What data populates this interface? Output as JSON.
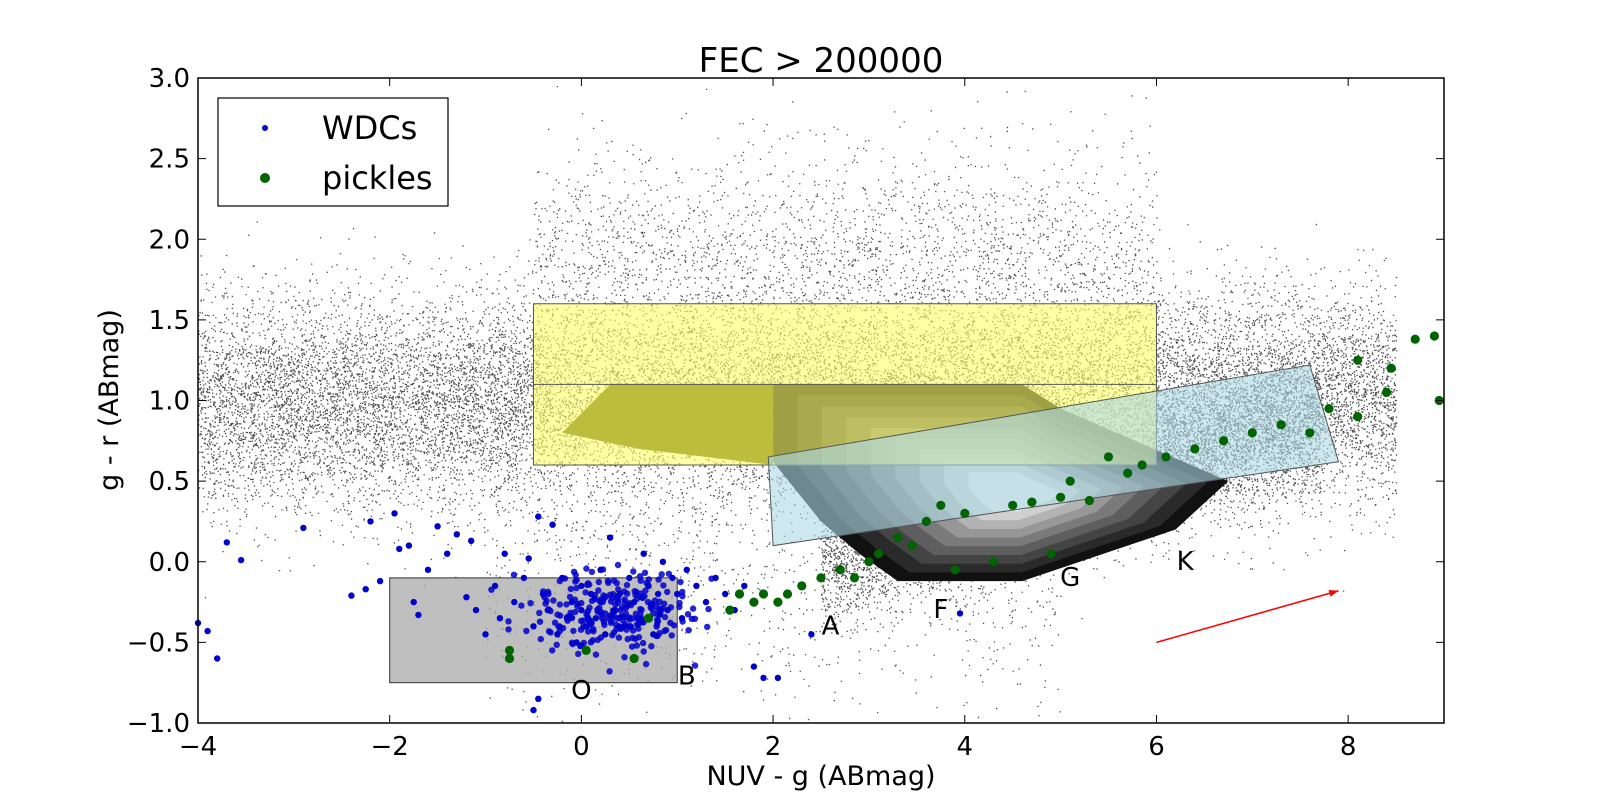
{
  "chart_data": {
    "type": "scatter",
    "title": "FEC > 200000",
    "xlabel": "NUV - g (ABmag)",
    "ylabel": "g - r (ABmag)",
    "xlim": [
      -4,
      9
    ],
    "ylim": [
      -1.0,
      3.0
    ],
    "xticks": [
      -4,
      -2,
      0,
      2,
      4,
      6,
      8
    ],
    "xtick_labels": [
      "−4",
      "−2",
      "0",
      "2",
      "4",
      "6",
      "8"
    ],
    "yticks": [
      -1.0,
      -0.5,
      0.0,
      0.5,
      1.0,
      1.5,
      2.0,
      2.5,
      3.0
    ],
    "ytick_labels": [
      "−1.0",
      "−0.5",
      "0.0",
      "0.5",
      "1.0",
      "1.5",
      "2.0",
      "2.5",
      "3.0"
    ],
    "grid": false,
    "legend": {
      "position": "top-left",
      "entries": [
        {
          "label": "WDCs",
          "color": "#0000cc",
          "marker": "small-dot"
        },
        {
          "label": "pickles",
          "color": "#006400",
          "marker": "dot"
        }
      ]
    },
    "colors": {
      "wdc": "#0000cc",
      "pickles": "#006400",
      "field_stars": "#000000",
      "yellow_box": "#ffff66",
      "blue_box": "#add8e6",
      "grey_box": "#a9a9a9",
      "arrow": "#ff0000"
    },
    "regions": [
      {
        "name": "yellow-region",
        "x_range": [
          -0.5,
          6.0
        ],
        "y_range": [
          0.6,
          1.6
        ],
        "inner_line_y": 1.1
      },
      {
        "name": "blue-region",
        "corners": [
          [
            1.95,
            0.65
          ],
          [
            7.6,
            1.22
          ],
          [
            7.9,
            0.62
          ],
          [
            2.0,
            0.1
          ]
        ]
      },
      {
        "name": "grey-region",
        "x_range": [
          -2.0,
          1.0
        ],
        "y_range": [
          -0.75,
          -0.1
        ]
      }
    ],
    "annotations": [
      {
        "text": "O",
        "x": 0.0,
        "y": -0.85
      },
      {
        "text": "B",
        "x": 1.1,
        "y": -0.76
      },
      {
        "text": "A",
        "x": 2.6,
        "y": -0.45
      },
      {
        "text": "F",
        "x": 3.75,
        "y": -0.35
      },
      {
        "text": "G",
        "x": 5.1,
        "y": -0.15
      },
      {
        "text": "K",
        "x": 6.3,
        "y": -0.05
      }
    ],
    "reddening_arrow": {
      "from": [
        6.0,
        -0.5
      ],
      "to": [
        7.9,
        -0.18
      ]
    },
    "series": [
      {
        "name": "WDCs",
        "points": [
          [
            -4.0,
            -0.38
          ],
          [
            -3.9,
            -0.43
          ],
          [
            -3.8,
            -0.6
          ],
          [
            -3.7,
            0.12
          ],
          [
            -3.55,
            0.01
          ],
          [
            -2.9,
            0.21
          ],
          [
            -2.4,
            -0.21
          ],
          [
            -2.25,
            -0.17
          ],
          [
            -2.2,
            0.25
          ],
          [
            -2.1,
            -0.12
          ],
          [
            -1.95,
            0.3
          ],
          [
            -1.9,
            0.08
          ],
          [
            -1.8,
            0.1
          ],
          [
            -1.75,
            -0.25
          ],
          [
            -1.7,
            -0.33
          ],
          [
            -1.6,
            -0.05
          ],
          [
            -1.5,
            0.22
          ],
          [
            -1.4,
            0.05
          ],
          [
            -1.3,
            0.17
          ],
          [
            -1.2,
            -0.22
          ],
          [
            -1.15,
            0.13
          ],
          [
            -1.1,
            -0.3
          ],
          [
            -1.0,
            -0.45
          ],
          [
            -0.9,
            -0.15
          ],
          [
            -0.85,
            -0.35
          ],
          [
            -0.8,
            0.05
          ],
          [
            -0.75,
            -0.55
          ],
          [
            -0.7,
            -0.25
          ],
          [
            -0.6,
            -0.1
          ],
          [
            -0.55,
            0.02
          ],
          [
            -0.5,
            -0.4
          ],
          [
            -0.45,
            0.28
          ],
          [
            -0.4,
            -0.2
          ],
          [
            -0.35,
            -0.3
          ],
          [
            -0.3,
            0.23
          ],
          [
            -0.25,
            -0.45
          ],
          [
            -0.2,
            -0.1
          ],
          [
            -0.15,
            -0.35
          ],
          [
            -0.1,
            -0.25
          ],
          [
            -0.05,
            -0.5
          ],
          [
            0.0,
            -0.3
          ],
          [
            0.0,
            -0.15
          ],
          [
            0.05,
            -0.4
          ],
          [
            0.1,
            -0.2
          ],
          [
            0.15,
            -0.35
          ],
          [
            0.2,
            -0.05
          ],
          [
            0.25,
            -0.45
          ],
          [
            0.3,
            0.15
          ],
          [
            0.35,
            -0.3
          ],
          [
            0.4,
            -0.2
          ],
          [
            0.45,
            -0.4
          ],
          [
            0.5,
            -0.1
          ],
          [
            0.55,
            -0.25
          ],
          [
            0.6,
            -0.35
          ],
          [
            0.65,
            0.05
          ],
          [
            0.7,
            -0.15
          ],
          [
            0.75,
            -0.45
          ],
          [
            0.8,
            -0.2
          ],
          [
            0.85,
            0.0
          ],
          [
            0.9,
            -0.3
          ],
          [
            0.95,
            -0.1
          ],
          [
            1.0,
            -0.2
          ],
          [
            1.05,
            -0.35
          ],
          [
            1.1,
            -0.05
          ],
          [
            1.2,
            -0.15
          ],
          [
            1.3,
            -0.25
          ],
          [
            1.4,
            -0.1
          ],
          [
            1.5,
            -0.2
          ],
          [
            1.6,
            -0.3
          ],
          [
            1.7,
            -0.15
          ],
          [
            1.8,
            -0.65
          ],
          [
            1.9,
            -0.72
          ],
          [
            2.05,
            -0.72
          ],
          [
            2.4,
            -0.45
          ],
          [
            3.95,
            -0.32
          ],
          [
            -0.5,
            -0.92
          ],
          [
            -0.45,
            -0.85
          ]
        ]
      },
      {
        "name": "pickles",
        "points": [
          [
            -0.75,
            -0.55
          ],
          [
            -0.75,
            -0.6
          ],
          [
            0.05,
            -0.55
          ],
          [
            0.55,
            -0.6
          ],
          [
            0.7,
            -0.35
          ],
          [
            1.55,
            -0.3
          ],
          [
            1.65,
            -0.2
          ],
          [
            1.8,
            -0.25
          ],
          [
            1.9,
            -0.2
          ],
          [
            2.05,
            -0.25
          ],
          [
            2.15,
            -0.2
          ],
          [
            2.3,
            -0.15
          ],
          [
            2.5,
            -0.1
          ],
          [
            2.7,
            -0.05
          ],
          [
            2.85,
            -0.1
          ],
          [
            3.0,
            0.0
          ],
          [
            3.1,
            0.05
          ],
          [
            3.3,
            0.15
          ],
          [
            3.45,
            0.1
          ],
          [
            3.6,
            0.25
          ],
          [
            3.75,
            0.35
          ],
          [
            3.9,
            -0.05
          ],
          [
            4.0,
            0.3
          ],
          [
            4.3,
            0.0
          ],
          [
            4.5,
            0.35
          ],
          [
            4.7,
            0.37
          ],
          [
            4.9,
            0.05
          ],
          [
            5.0,
            0.4
          ],
          [
            5.1,
            0.5
          ],
          [
            5.3,
            0.38
          ],
          [
            5.5,
            0.65
          ],
          [
            5.7,
            0.55
          ],
          [
            5.85,
            0.6
          ],
          [
            6.1,
            0.65
          ],
          [
            6.4,
            0.7
          ],
          [
            6.7,
            0.75
          ],
          [
            7.0,
            0.8
          ],
          [
            7.3,
            0.85
          ],
          [
            7.6,
            0.8
          ],
          [
            7.8,
            0.95
          ],
          [
            8.1,
            0.9
          ],
          [
            8.1,
            1.25
          ],
          [
            8.4,
            1.05
          ],
          [
            8.45,
            1.2
          ],
          [
            8.7,
            1.38
          ],
          [
            8.9,
            1.4
          ],
          [
            8.95,
            1.0
          ]
        ]
      }
    ]
  }
}
